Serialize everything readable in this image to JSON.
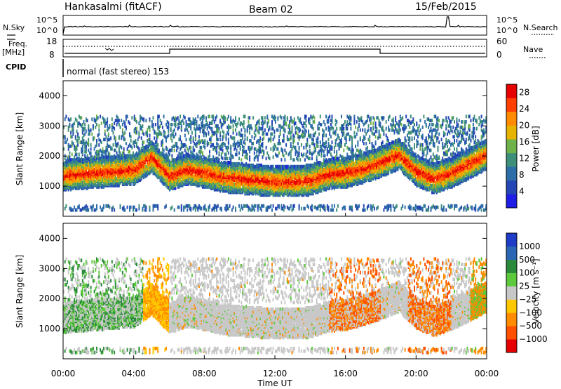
{
  "header": {
    "station": "Hankasalmi (fitACF)",
    "beam": "Beam 02",
    "date": "15/Feb/2015"
  },
  "noise_panel": {
    "left_label": "N.Sky",
    "right_label": "N.Search",
    "ticks": [
      "10^5",
      "10^0"
    ]
  },
  "freq_panel": {
    "left_label_1": "Freq.",
    "left_label_2": "[MHz]",
    "left_ticks": [
      "18",
      "8"
    ],
    "right_label": "Nave",
    "right_ticks": [
      "60",
      "0"
    ]
  },
  "cpid": {
    "label": "CPID",
    "mode_text": "normal (fast stereo) 153"
  },
  "chart_data": [
    {
      "type": "heatmap",
      "title": "",
      "xlabel": "",
      "ylabel": "Slant Range [km]",
      "y_ticks": [
        "1000",
        "2000",
        "3000",
        "4000"
      ],
      "ylim": [
        0,
        4500
      ],
      "colorbar": {
        "label": "Power [dB]",
        "ticks": [
          "4",
          "8",
          "12",
          "16",
          "20",
          "24",
          "28"
        ],
        "range": [
          0,
          30
        ],
        "colors": [
          "#1e1ee6",
          "#2347b4",
          "#2d6ea8",
          "#3e8f7a",
          "#6fb24a",
          "#e6b400",
          "#ff8c00",
          "#ff4000",
          "#e60000"
        ]
      },
      "echo_bands": [
        {
          "x": [
            0,
            1,
            2,
            3,
            4,
            5,
            6,
            7,
            8,
            9,
            10,
            11,
            12,
            13,
            14,
            15,
            16,
            17,
            18,
            19,
            20,
            21,
            22,
            23,
            24
          ],
          "center": [
            1300,
            1350,
            1400,
            1450,
            1500,
            1900,
            1300,
            1500,
            1400,
            1250,
            1200,
            1150,
            1100,
            1100,
            1150,
            1350,
            1400,
            1550,
            1750,
            2000,
            1450,
            1200,
            1400,
            1700,
            2000
          ]
        }
      ]
    },
    {
      "type": "heatmap",
      "title": "",
      "xlabel": "Time UT",
      "ylabel": "Slant Range [km]",
      "x_ticks": [
        "00:00",
        "04:00",
        "08:00",
        "12:00",
        "16:00",
        "20:00",
        "00:00"
      ],
      "y_ticks": [
        "1000",
        "2000",
        "3000",
        "4000"
      ],
      "ylim": [
        0,
        4500
      ],
      "colorbar": {
        "label": "Velocity [m s⁻¹]",
        "ticks": [
          "1000",
          "500",
          "100",
          "25",
          "−25",
          "−100",
          "−500",
          "−1000"
        ],
        "colors": [
          "#1e3cc8",
          "#2a66b4",
          "#2a8a3c",
          "#5cc83c",
          "#c8c8c8",
          "#ffc800",
          "#ff8c00",
          "#ff5000",
          "#e60000"
        ]
      }
    }
  ]
}
